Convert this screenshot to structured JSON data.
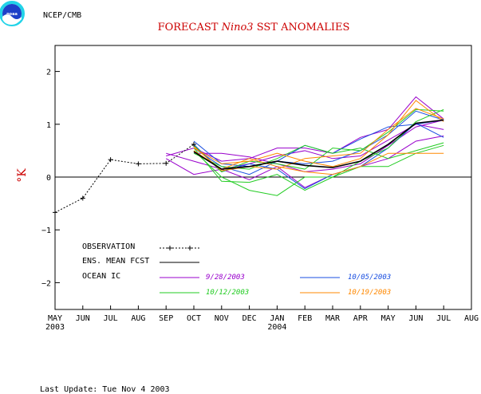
{
  "header": {
    "org": "NCEP/CMB",
    "logo_text": "noaa",
    "title_pre": "FORECAST ",
    "title_em": "Nino3",
    "title_post": "  SST ANOMALIES",
    "ylabel": "°K",
    "footer": "Last Update: Tue Nov 4 2003"
  },
  "colors": {
    "title": "#cc0000",
    "purple": "#9900cc",
    "blue": "#1a4fe0",
    "green": "#22cc22",
    "orange": "#ff8800",
    "ensemble": "#000000",
    "observation": "#000000"
  },
  "chart_data": {
    "type": "line",
    "xlabel": "",
    "ylabel": "°K",
    "x_ticks": [
      "MAY",
      "JUN",
      "JUL",
      "AUG",
      "SEP",
      "OCT",
      "NOV",
      "DEC",
      "JAN",
      "FEB",
      "MAR",
      "APR",
      "MAY",
      "JUN",
      "JUL",
      "AUG"
    ],
    "year_labels": [
      {
        "month_index": 0,
        "text": "2003"
      },
      {
        "month_index": 8,
        "text": "2004"
      }
    ],
    "y_ticks": [
      2,
      1,
      0,
      -1,
      -2
    ],
    "y_tick_labels": [
      "2",
      "1",
      "0",
      "−1",
      "−2"
    ],
    "ylim": [
      -2.5,
      2.5
    ],
    "legend": {
      "observation": "OBSERVATION",
      "ensemble": "ENS. MEAN FCST",
      "ocean_ic": "OCEAN IC",
      "ic1": "9/28/2003",
      "ic2": "10/05/2003",
      "ic3": "10/12/2003",
      "ic4": "10/19/2003"
    },
    "observation": {
      "name": "OBSERVATION",
      "x": [
        0,
        1,
        2,
        3,
        4,
        5
      ],
      "y": [
        -0.67,
        -0.4,
        0.33,
        0.25,
        0.26,
        0.62
      ]
    },
    "ensemble_mean": {
      "name": "ENS. MEAN FCST",
      "x": [
        5,
        6,
        7,
        8,
        9,
        10,
        11,
        12,
        13,
        14
      ],
      "y": [
        0.48,
        0.15,
        0.2,
        0.3,
        0.22,
        0.18,
        0.3,
        0.62,
        1.02,
        1.08
      ]
    },
    "members": [
      {
        "group": "9/28/2003",
        "color": "purple",
        "x": [
          4,
          5,
          6,
          7,
          8,
          9,
          10,
          11,
          12,
          13,
          14
        ],
        "y": [
          0.45,
          0.3,
          0.15,
          0.25,
          0.4,
          0.5,
          0.35,
          0.4,
          0.7,
          1.0,
          0.9
        ]
      },
      {
        "group": "9/28/2003",
        "color": "purple",
        "x": [
          4,
          5,
          6,
          7,
          8,
          9,
          10,
          11,
          12,
          13,
          14
        ],
        "y": [
          0.4,
          0.55,
          0.3,
          0.35,
          0.55,
          0.55,
          0.45,
          0.75,
          0.9,
          1.52,
          1.1
        ]
      },
      {
        "group": "9/28/2003",
        "color": "purple",
        "x": [
          4,
          5,
          6,
          7,
          8,
          9,
          10,
          11,
          12,
          13,
          14
        ],
        "y": [
          0.35,
          0.05,
          0.15,
          -0.05,
          0.2,
          -0.2,
          0.05,
          0.2,
          0.35,
          0.68,
          0.78
        ]
      },
      {
        "group": "9/28/2003",
        "color": "purple",
        "x": [
          5,
          6,
          7,
          8,
          9,
          10,
          11,
          12,
          13,
          14
        ],
        "y": [
          0.45,
          0.45,
          0.38,
          0.25,
          0.1,
          0.15,
          0.25,
          0.6,
          0.95,
          1.08
        ]
      },
      {
        "group": "10/05/2003",
        "color": "blue",
        "x": [
          5,
          6,
          7,
          8,
          9,
          10,
          11,
          12,
          13,
          14
        ],
        "y": [
          0.68,
          0.25,
          0.2,
          0.3,
          0.6,
          0.45,
          0.72,
          0.95,
          1.0,
          1.08
        ]
      },
      {
        "group": "10/05/2003",
        "color": "blue",
        "x": [
          5,
          6,
          7,
          8,
          9,
          10,
          11,
          12,
          13,
          14
        ],
        "y": [
          0.62,
          0.1,
          0.25,
          0.15,
          -0.22,
          0.05,
          0.2,
          0.55,
          1.02,
          0.75
        ]
      },
      {
        "group": "10/05/2003",
        "color": "blue",
        "x": [
          5,
          6,
          7,
          8,
          9,
          10,
          11,
          12,
          13,
          14
        ],
        "y": [
          0.55,
          0.2,
          0.05,
          0.3,
          0.25,
          0.3,
          0.5,
          0.8,
          1.25,
          1.08
        ]
      },
      {
        "group": "10/12/2003",
        "color": "green",
        "x": [
          5,
          6,
          7,
          8,
          9,
          10,
          11,
          12,
          13,
          14
        ],
        "y": [
          0.55,
          -0.08,
          -0.1,
          0.05,
          -0.25,
          0.0,
          0.2,
          0.2,
          0.45,
          0.6
        ]
      },
      {
        "group": "10/12/2003",
        "color": "green",
        "x": [
          5,
          6,
          7,
          8,
          9,
          10,
          11,
          12,
          13,
          14
        ],
        "y": [
          0.5,
          0.0,
          -0.25,
          -0.35,
          0.0,
          0.0,
          0.3,
          0.55,
          1.05,
          1.28
        ]
      },
      {
        "group": "10/12/2003",
        "color": "green",
        "x": [
          5,
          6,
          7,
          8,
          9,
          10,
          11,
          12,
          13,
          14
        ],
        "y": [
          0.45,
          0.2,
          0.15,
          0.35,
          0.6,
          0.45,
          0.55,
          0.35,
          0.5,
          0.65
        ]
      },
      {
        "group": "10/12/2003",
        "color": "green",
        "x": [
          5,
          6,
          7,
          8,
          9,
          10,
          11,
          12,
          13,
          14
        ],
        "y": [
          0.6,
          0.1,
          0.3,
          0.25,
          0.15,
          0.55,
          0.5,
          0.85,
          1.28,
          1.25
        ]
      },
      {
        "group": "10/19/2003",
        "color": "orange",
        "x": [
          5,
          6,
          7,
          8,
          9,
          10,
          11,
          12,
          13,
          14
        ],
        "y": [
          0.5,
          0.15,
          0.35,
          0.2,
          0.1,
          0.05,
          0.2,
          0.45,
          0.45,
          0.45
        ]
      },
      {
        "group": "10/19/2003",
        "color": "orange",
        "x": [
          5,
          6,
          7,
          8,
          9,
          10,
          11,
          12,
          13,
          14
        ],
        "y": [
          0.55,
          0.25,
          0.3,
          0.45,
          0.3,
          0.2,
          0.35,
          0.8,
          1.45,
          1.05
        ]
      },
      {
        "group": "10/19/2003",
        "color": "orange",
        "x": [
          5,
          6,
          7,
          8,
          9,
          10,
          11,
          12,
          13,
          14
        ],
        "y": [
          0.58,
          0.12,
          0.2,
          0.15,
          0.35,
          0.4,
          0.45,
          0.9,
          1.3,
          1.1
        ]
      }
    ]
  }
}
